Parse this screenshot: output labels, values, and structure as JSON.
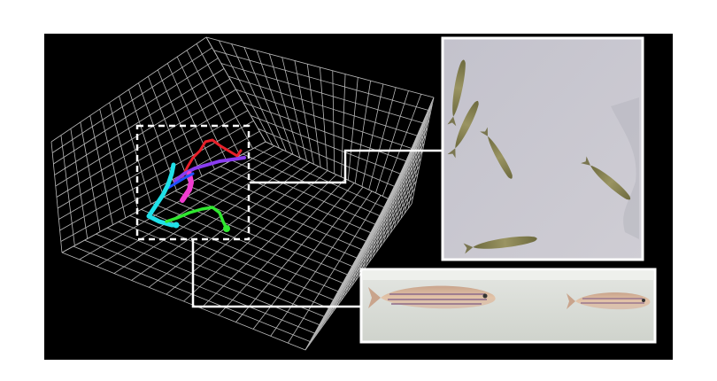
{
  "figure": {
    "description_colors": {
      "background": "#000000",
      "grid": "#bdbdbd",
      "callout": "#ffffff",
      "tank_top": "#c9c8d0",
      "tank_side": "#d9dcd6"
    },
    "trajectory_colors": [
      "#e8202a",
      "#8a3cf0",
      "#f03cd0",
      "#2050ff",
      "#20e0e8",
      "#30e830"
    ],
    "panels": {
      "top_view": {
        "label": "top-view-tank-photo",
        "fish_count": 5
      },
      "side_view": {
        "label": "side-view-tank-photo",
        "fish_count": 2
      }
    }
  }
}
